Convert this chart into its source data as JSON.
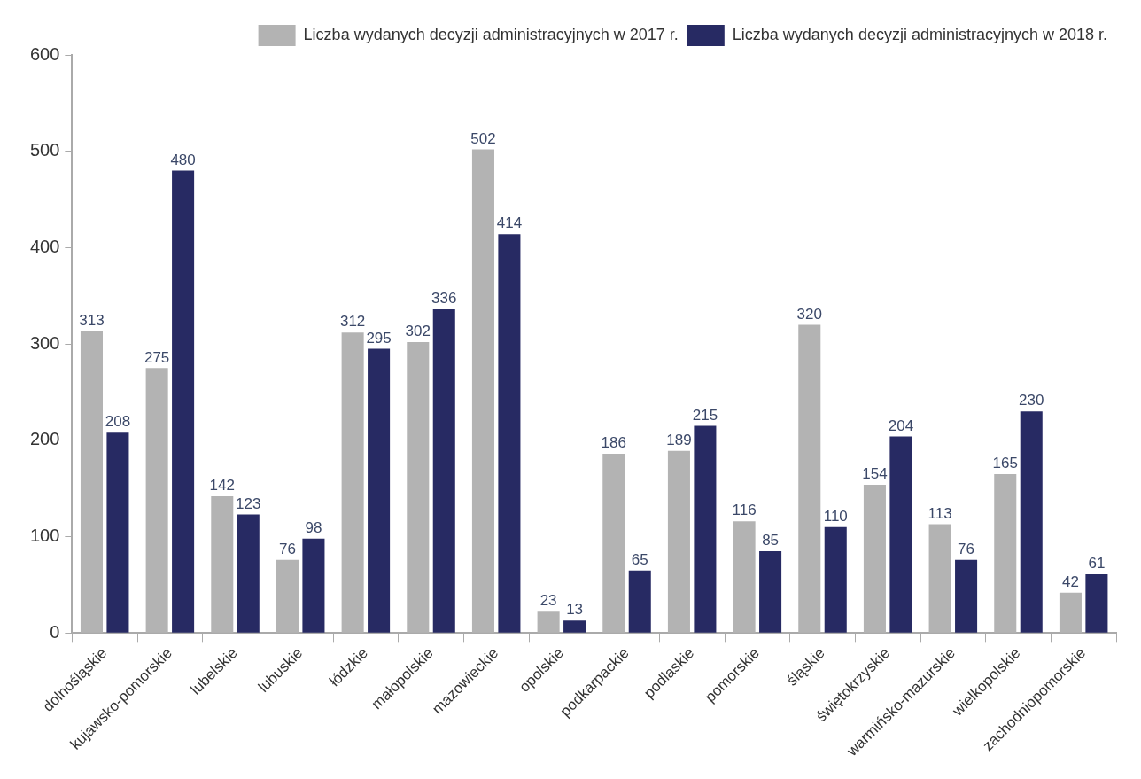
{
  "chart_data": {
    "type": "bar",
    "categories": [
      "dolnośląskie",
      "kujawsko-pomorskie",
      "lubelskie",
      "lubuskie",
      "łódzkie",
      "małopolskie",
      "mazowieckie",
      "opolskie",
      "podkarpackie",
      "podlaskie",
      "pomorskie",
      "śląskie",
      "świętokrzyskie",
      "warmińsko-mazurskie",
      "wielkopolskie",
      "zachodniopomorskie"
    ],
    "series": [
      {
        "name": "Liczba wydanych decyzji administracyjnych w 2017 r.",
        "color": "#b3b3b3",
        "values": [
          313,
          275,
          142,
          76,
          312,
          302,
          502,
          23,
          186,
          189,
          116,
          320,
          154,
          113,
          165,
          42
        ]
      },
      {
        "name": "Liczba wydanych decyzji administracyjnych w 2018 r.",
        "color": "#272a63",
        "values": [
          208,
          480,
          123,
          98,
          295,
          336,
          414,
          13,
          65,
          215,
          85,
          110,
          204,
          76,
          230,
          61
        ]
      }
    ],
    "ylim": [
      0,
      600
    ],
    "yticks": [
      0,
      100,
      200,
      300,
      400,
      500,
      600
    ],
    "grid": false,
    "legend": "top right",
    "data_labels": true
  }
}
